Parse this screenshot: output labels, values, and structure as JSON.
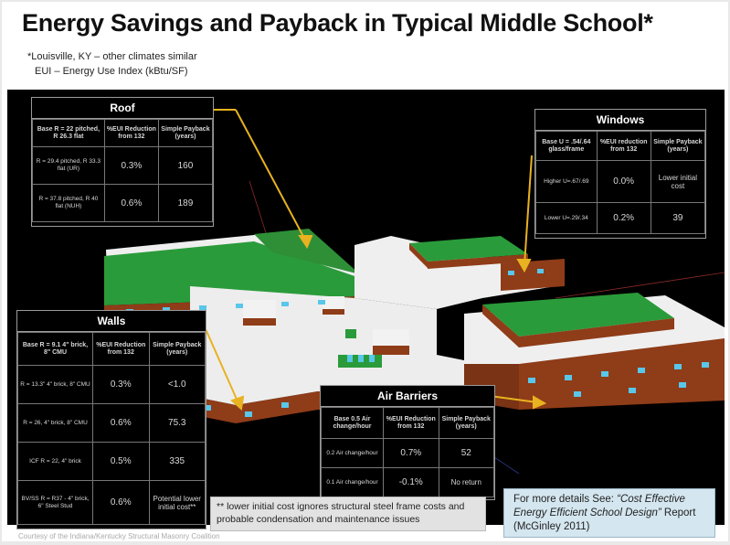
{
  "title": "Energy Savings and Payback in Typical Middle School*",
  "subtitle_1": "*Louisville, KY – other climates similar",
  "subtitle_2": "EUI – Energy Use Index (kBtu/SF)",
  "roof": {
    "heading": "Roof",
    "headers": [
      "Base R = 22 pitched, R 26.3 flat",
      "%EUI Reduction from 132",
      "Simple Payback (years)"
    ],
    "rows": [
      [
        "R = 29.4 pitched, R 33.3 flat (UR)",
        "0.3%",
        "160"
      ],
      [
        "R = 37.8 pitched, R 40 flat (NUH)",
        "0.6%",
        "189"
      ]
    ]
  },
  "windows": {
    "heading": "Windows",
    "headers": [
      "Base U = .54/.64 glass/frame",
      "%EUI reduction from 132",
      "Simple Payback (years)"
    ],
    "rows": [
      [
        "Higher U=.67/.69",
        "0.0%",
        "Lower initial cost"
      ],
      [
        "Lower U=.29/.34",
        "0.2%",
        "39"
      ]
    ]
  },
  "walls": {
    "heading": "Walls",
    "headers": [
      "Base R = 9.1 4\" brick, 8\" CMU",
      "%EUI Reduction from 132",
      "Simple Payback (years)"
    ],
    "rows": [
      [
        "R = 13.3\" 4\" brick, 8\" CMU",
        "0.3%",
        "<1.0"
      ],
      [
        "R = 26, 4\" brick, 8\" CMU",
        "0.6%",
        "75.3"
      ],
      [
        "ICF R = 22, 4\" brick",
        "0.5%",
        "335"
      ],
      [
        "BV/SS R = R37 - 4\" brick, 6\" Steel Stud",
        "0.6%",
        "Potential lower initial cost**"
      ]
    ]
  },
  "air": {
    "heading": "Air Barriers",
    "headers": [
      "Base 0.5 Air change/hour",
      "%EUI Reduction from 132",
      "Simple Payback (years)"
    ],
    "rows": [
      [
        "0.2 Air change/hour",
        "0.7%",
        "52"
      ],
      [
        "0.1 Air change/hour",
        "-0.1%",
        "No return"
      ]
    ]
  },
  "note": "** lower initial cost ignores structural steel frame costs and probable condensation and maintenance issues",
  "more": {
    "prefix": "For more details See: ",
    "italic": "“Cost Effective Energy Efficient School Design”",
    "suffix": " Report (McGinley 2011)"
  },
  "credit": "Courtesy of the Indiana/Kentucky Structural Masonry Coalition",
  "colors": {
    "brick": "#8f3c18",
    "roof_white": "#efefef",
    "roof_green": "#2a9b3a",
    "window": "#58c7ea",
    "arrow": "#e8b220"
  }
}
